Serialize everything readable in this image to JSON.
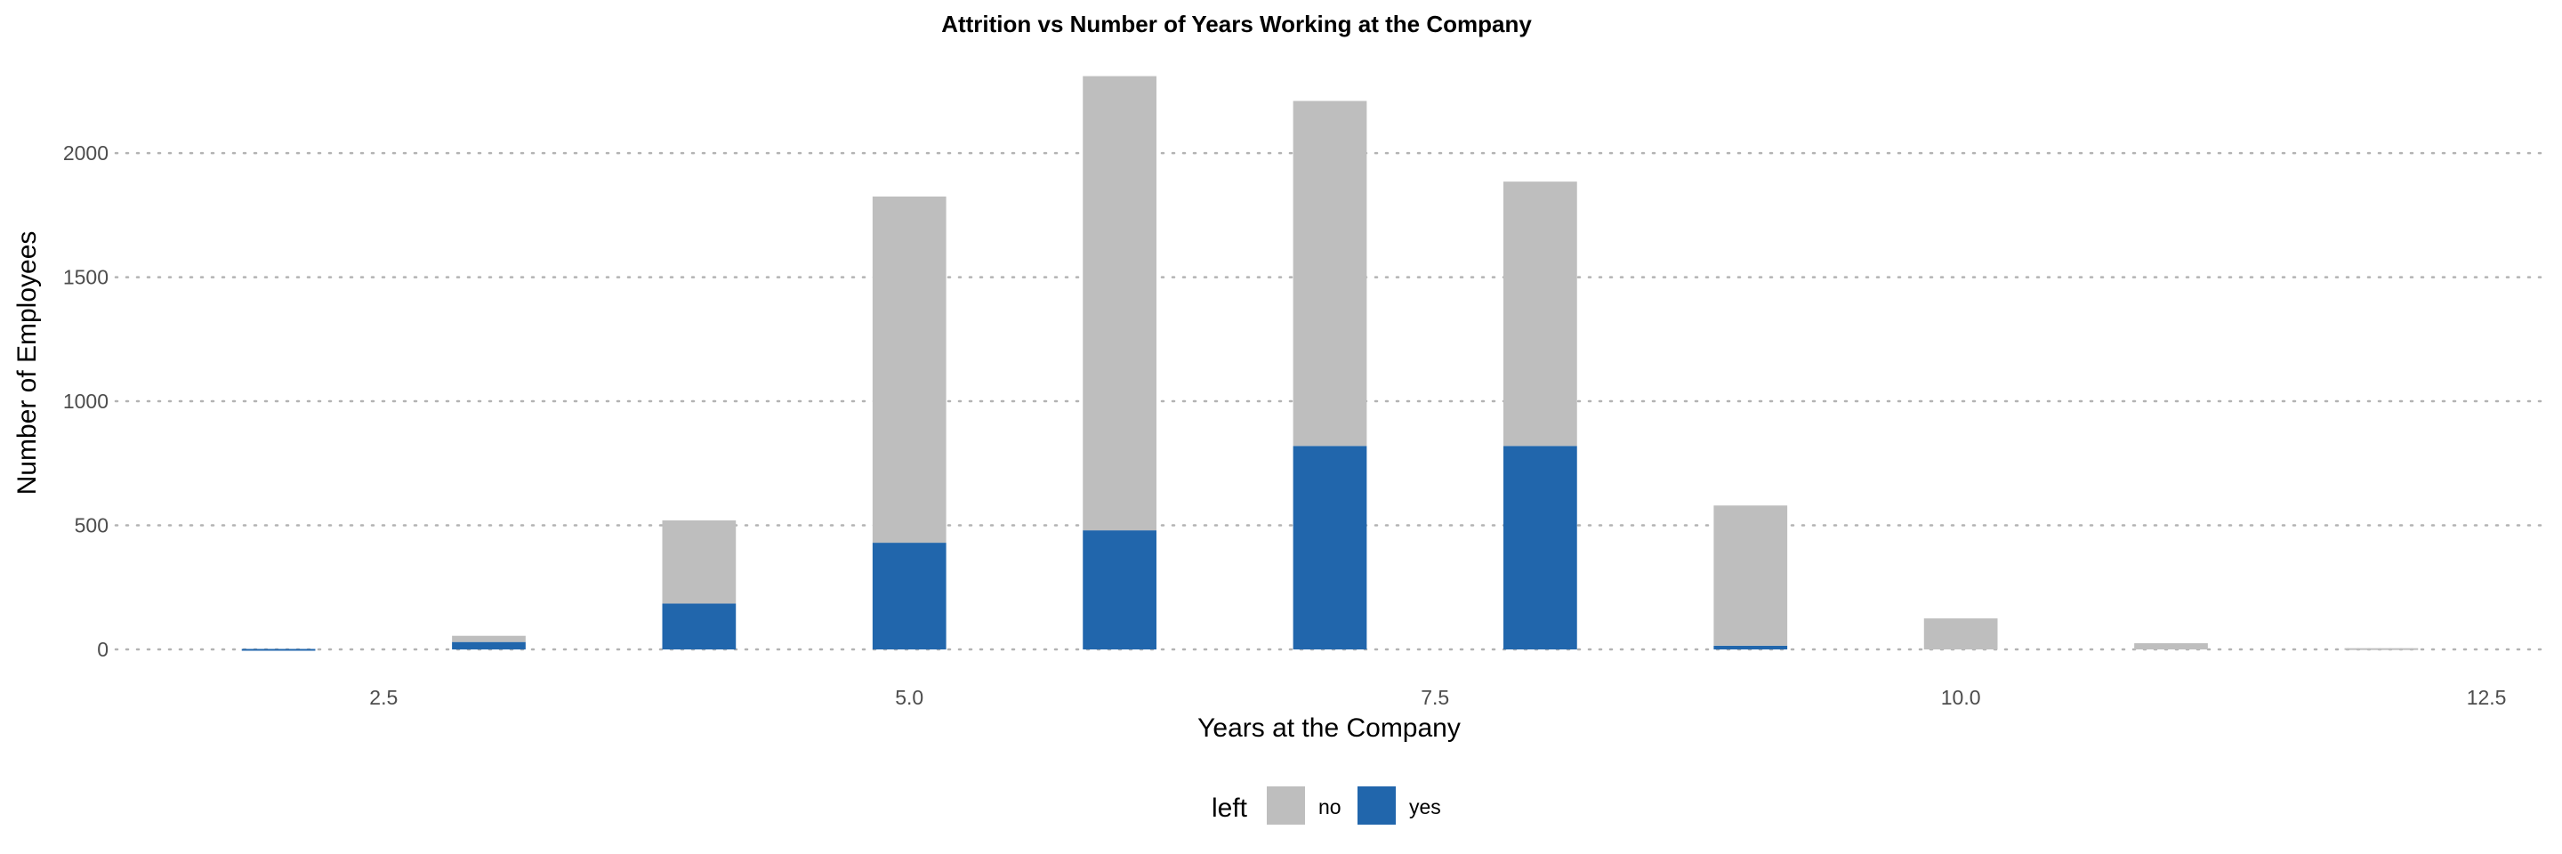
{
  "chart_data": {
    "type": "bar",
    "stacked": true,
    "title": "Attrition vs Number of Years Working at the Company",
    "xlabel": "Years at the Company",
    "ylabel": "Number of Employees",
    "x": [
      2,
      3,
      4,
      5,
      6,
      7,
      8,
      9,
      10,
      11,
      12
    ],
    "series": [
      {
        "name": "yes",
        "color": "#2166ac",
        "values": [
          2,
          30,
          185,
          430,
          480,
          820,
          820,
          15,
          0,
          0,
          0
        ]
      },
      {
        "name": "no",
        "color": "#bebebe",
        "values": [
          0,
          25,
          335,
          1395,
          1830,
          1390,
          1065,
          565,
          125,
          25,
          5
        ]
      }
    ],
    "xlim": [
      1.2,
      12.8
    ],
    "ylim": [
      -50,
      2330
    ],
    "xticks": [
      2.5,
      5.0,
      7.5,
      10.0,
      12.5
    ],
    "xtick_labels": [
      "2.5",
      "5.0",
      "7.5",
      "10.0",
      "12.5"
    ],
    "yticks": [
      0,
      500,
      1000,
      1500,
      2000
    ],
    "ytick_labels": [
      "0",
      "500",
      "1000",
      "1500",
      "2000"
    ],
    "grid": "horizontal dotted",
    "legend": {
      "title": "left",
      "position": "bottom",
      "entries": [
        {
          "label": "no",
          "color": "#bebebe"
        },
        {
          "label": "yes",
          "color": "#2166ac"
        }
      ]
    }
  }
}
